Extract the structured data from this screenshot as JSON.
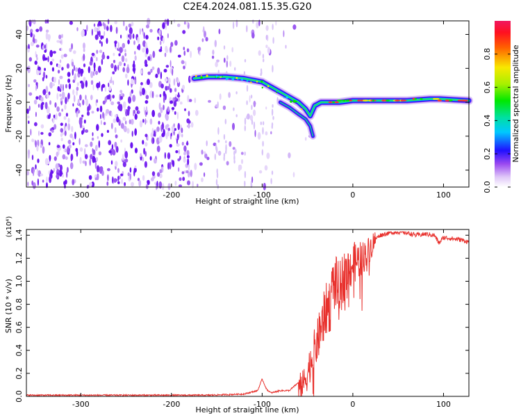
{
  "title": "C2E4.2024.081.15.35.G20",
  "chart_data": [
    {
      "type": "heatmap",
      "xlabel": "Height of straight line (km)",
      "ylabel": "Frequency (Hz)",
      "xlim": [
        -360,
        128
      ],
      "ylim": [
        -50,
        48
      ],
      "xticks": [
        "-300",
        "-200",
        "-100",
        "0",
        "100"
      ],
      "xtick_values": [
        -300,
        -200,
        -100,
        0,
        100
      ],
      "yticks": [
        "40",
        "20",
        "0",
        "-20",
        "-40"
      ],
      "ytick_values": [
        40,
        20,
        0,
        -20,
        -40
      ],
      "colorbar": {
        "label": "Normalized spectral amplitude",
        "ticks": [
          "0.0",
          "0.2",
          "0.4",
          "0.6",
          "0.8"
        ],
        "tick_values": [
          0.0,
          0.2,
          0.4,
          0.6,
          0.8
        ],
        "range": [
          0,
          1
        ]
      },
      "ridge": {
        "x": [
          -175,
          -160,
          -140,
          -120,
          -100,
          -90,
          -80,
          -70,
          -60,
          -52,
          -47,
          -42,
          -35,
          -25,
          -15,
          0,
          30,
          60,
          85,
          95,
          128
        ],
        "y": [
          14,
          15,
          15,
          14,
          12,
          9,
          6,
          3,
          0,
          -4,
          -8,
          -2,
          0,
          0,
          0,
          1,
          1,
          1,
          2,
          2,
          1
        ]
      },
      "ridge_lower": {
        "x": [
          -80,
          -70,
          -60,
          -52,
          -47,
          -44
        ],
        "y": [
          0,
          -3,
          -7,
          -10,
          -14,
          -20
        ]
      }
    },
    {
      "type": "line",
      "xlabel": "Height of straight line (km)",
      "ylabel": "SNR (10 * v/v)",
      "y_scale_label": "(x10⁴)",
      "xlim": [
        -360,
        128
      ],
      "ylim": [
        0,
        1.45
      ],
      "xticks": [
        "-300",
        "-200",
        "-100",
        "0",
        "100"
      ],
      "xtick_values": [
        -300,
        -200,
        -100,
        0,
        100
      ],
      "yticks": [
        "0.0",
        "0.2",
        "0.4",
        "0.6",
        "0.8",
        "1.0",
        "1.2",
        "1.4"
      ],
      "ytick_values": [
        0,
        0.2,
        0.4,
        0.6,
        0.8,
        1.0,
        1.2,
        1.4
      ],
      "series": [
        {
          "color": "#e8302c",
          "x": [
            -360,
            -300,
            -250,
            -200,
            -160,
            -140,
            -120,
            -105,
            -100,
            -95,
            -90,
            -80,
            -70,
            -60,
            -55,
            -50,
            -45,
            -40,
            -35,
            -30,
            -25,
            -20,
            -15,
            -10,
            -5,
            0,
            5,
            10,
            15,
            20,
            25,
            30,
            40,
            50,
            60,
            70,
            80,
            90,
            95,
            100,
            110,
            120,
            128
          ],
          "y": [
            0.01,
            0.01,
            0.01,
            0.01,
            0.01,
            0.015,
            0.02,
            0.05,
            0.15,
            0.06,
            0.03,
            0.05,
            0.05,
            0.12,
            0.1,
            0.2,
            0.35,
            0.45,
            0.6,
            0.75,
            0.8,
            1.0,
            0.9,
            1.05,
            1.1,
            1.15,
            1.18,
            1.2,
            1.24,
            1.3,
            1.37,
            1.4,
            1.42,
            1.43,
            1.42,
            1.4,
            1.41,
            1.4,
            1.33,
            1.38,
            1.37,
            1.36,
            1.34
          ]
        }
      ]
    }
  ]
}
